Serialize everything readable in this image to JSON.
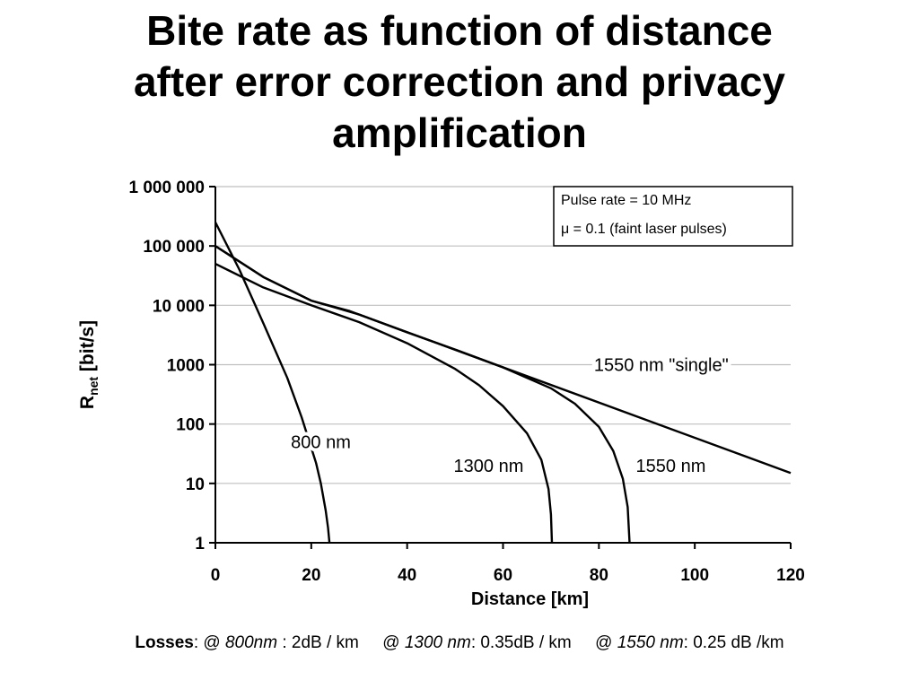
{
  "slide": {
    "title_lines": [
      "Bite rate as function of distance",
      "after error correction and privacy",
      "amplification"
    ]
  },
  "chart_data": {
    "type": "line",
    "xlabel": "Distance [km]",
    "ylabel_main": "R",
    "ylabel_sub": "net",
    "ylabel_unit": " [bit/s]",
    "xlim": [
      0,
      120
    ],
    "ylim": [
      1,
      1000000
    ],
    "yscale": "log",
    "grid": "horizontal",
    "x_ticks": [
      {
        "value": 0,
        "label": "0"
      },
      {
        "value": 20,
        "label": "20"
      },
      {
        "value": 40,
        "label": "40"
      },
      {
        "value": 60,
        "label": "60"
      },
      {
        "value": 80,
        "label": "80"
      },
      {
        "value": 100,
        "label": "100"
      },
      {
        "value": 120,
        "label": "120"
      }
    ],
    "y_ticks": [
      {
        "value": 1000000,
        "label": "1 000 000"
      },
      {
        "value": 100000,
        "label": "100 000"
      },
      {
        "value": 10000,
        "label": "10 000"
      },
      {
        "value": 1000,
        "label": "1000"
      },
      {
        "value": 100,
        "label": "100"
      },
      {
        "value": 10,
        "label": "10"
      },
      {
        "value": 1,
        "label": "1"
      }
    ],
    "annotation_box": [
      "Pulse rate = 10 MHz",
      "μ = 0.1 (faint laser pulses)"
    ],
    "series": [
      {
        "name": "800 nm",
        "label_pos": [
          22,
          50
        ],
        "points": [
          [
            0,
            250000
          ],
          [
            5,
            40000
          ],
          [
            10,
            5000
          ],
          [
            15,
            600
          ],
          [
            18,
            130
          ],
          [
            20,
            40
          ],
          [
            21,
            22
          ],
          [
            22,
            10
          ],
          [
            23,
            3.5
          ],
          [
            23.5,
            1.8
          ],
          [
            23.8,
            1
          ]
        ]
      },
      {
        "name": "1300 nm",
        "label_pos": [
          57,
          20
        ],
        "points": [
          [
            0,
            50000
          ],
          [
            10,
            20000
          ],
          [
            20,
            10000
          ],
          [
            30,
            5200
          ],
          [
            40,
            2300
          ],
          [
            50,
            850
          ],
          [
            55,
            450
          ],
          [
            60,
            200
          ],
          [
            65,
            70
          ],
          [
            68,
            25
          ],
          [
            69.5,
            8
          ],
          [
            70,
            3
          ],
          [
            70.2,
            1
          ]
        ]
      },
      {
        "name": "1550 nm",
        "label_pos": [
          95,
          20
        ],
        "points": [
          [
            0,
            100000
          ],
          [
            10,
            30000
          ],
          [
            20,
            12000
          ],
          [
            30,
            7000
          ],
          [
            40,
            3500
          ],
          [
            50,
            1800
          ],
          [
            60,
            900
          ],
          [
            70,
            400
          ],
          [
            75,
            220
          ],
          [
            80,
            90
          ],
          [
            83,
            35
          ],
          [
            85,
            12
          ],
          [
            86,
            4
          ],
          [
            86.4,
            1
          ]
        ]
      },
      {
        "name": "1550 nm \"single\"",
        "label_pos": [
          93,
          1000
        ],
        "points": [
          [
            0,
            100000
          ],
          [
            10,
            30000
          ],
          [
            20,
            12000
          ],
          [
            28,
            8000
          ],
          [
            120,
            15
          ]
        ]
      }
    ]
  },
  "footer": {
    "losses_label": "Losses",
    "sep1": ": @ ",
    "nm800": "800nm",
    "val800": " : 2dB / km     @ ",
    "nm1300": "1300 nm",
    "val1300": ": 0.35dB / km     @ ",
    "nm1550": "1550 nm",
    "val1550": ": 0.25 dB /km"
  }
}
